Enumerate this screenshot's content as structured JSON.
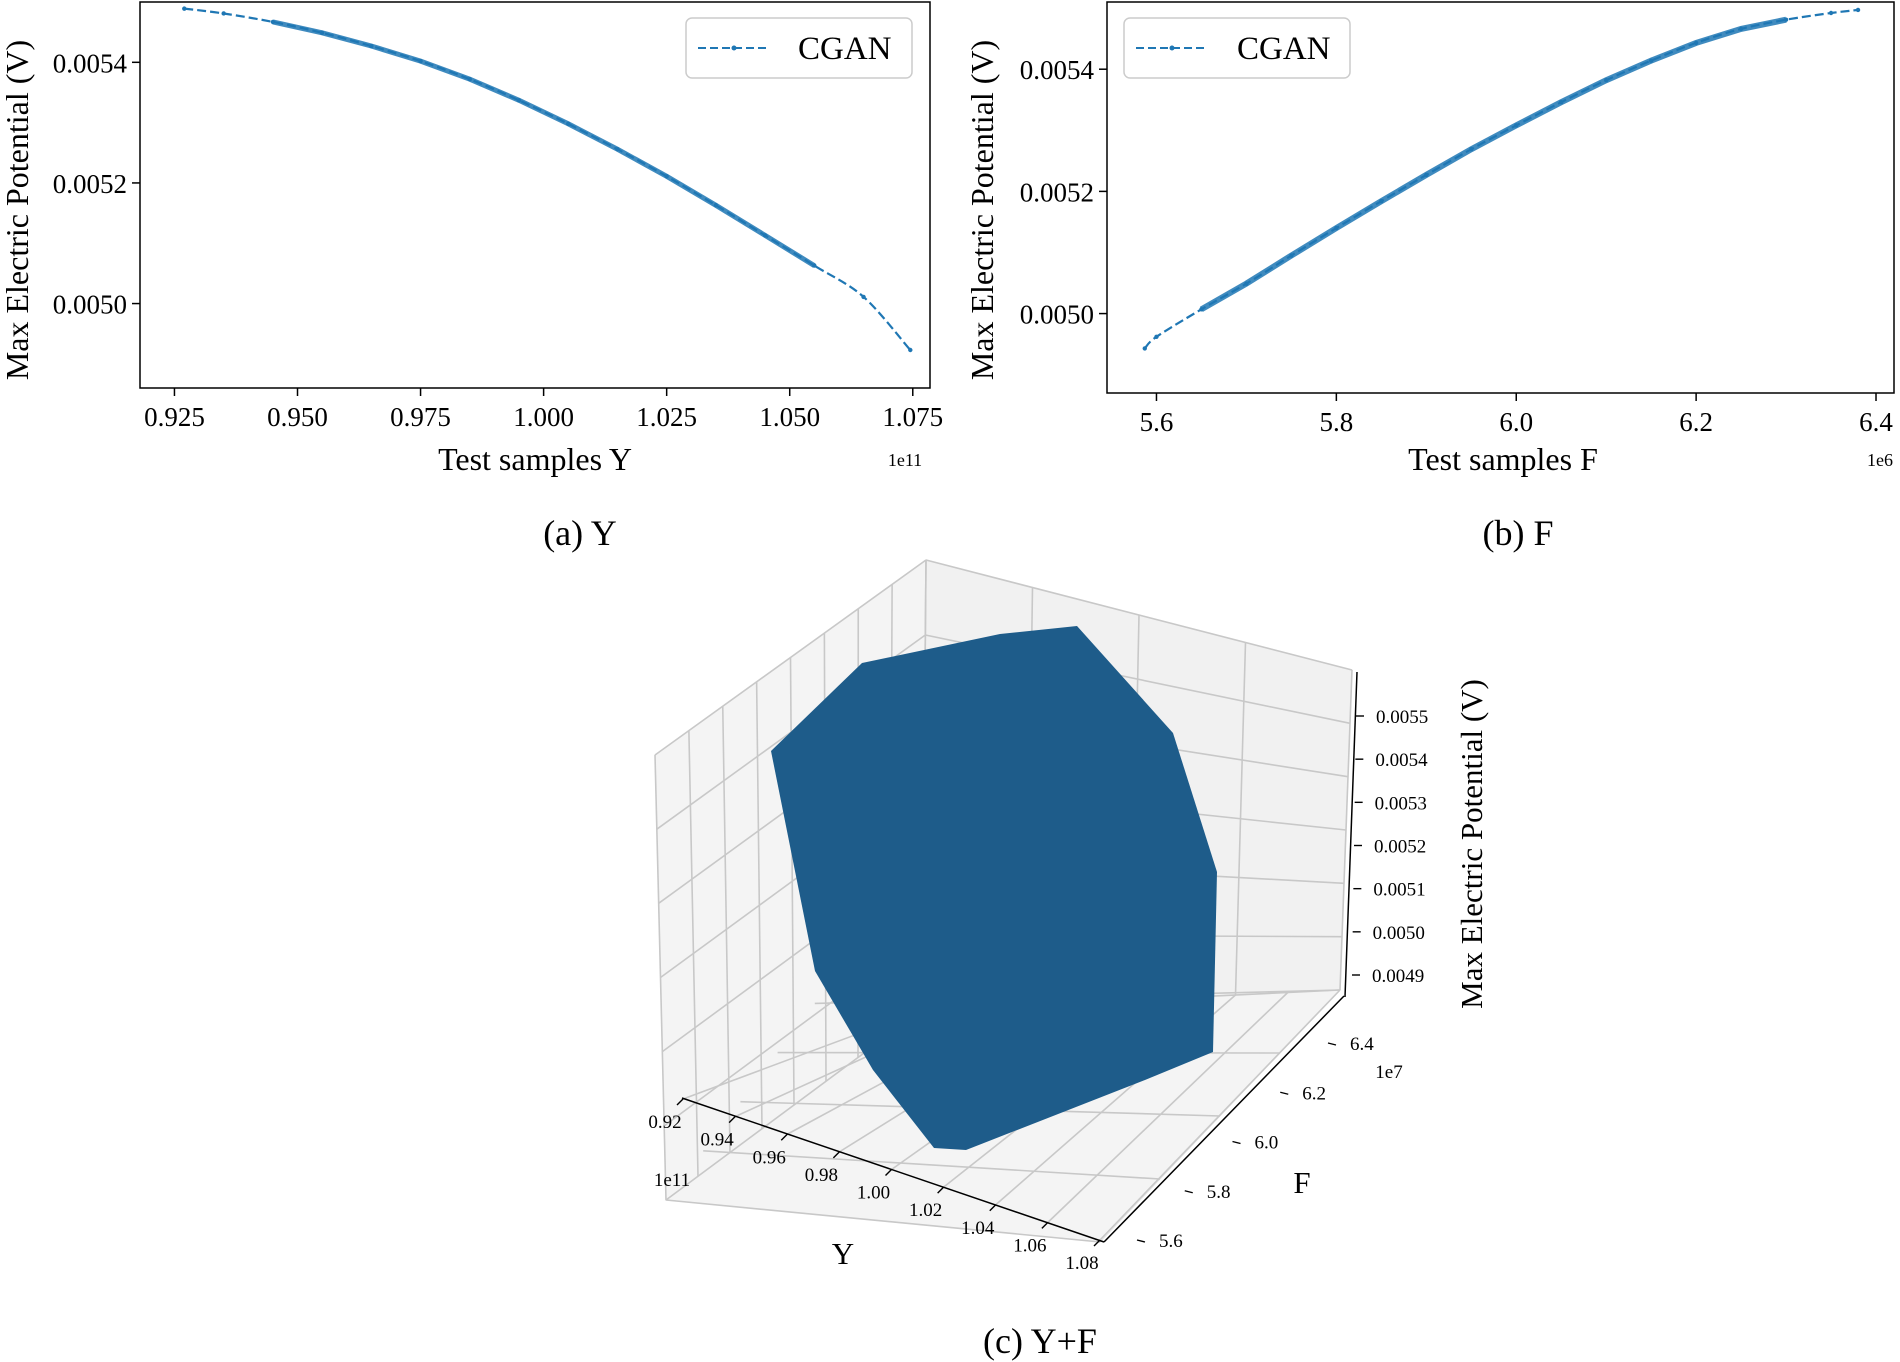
{
  "chart_data": [
    {
      "type": "line",
      "caption": "(a) Y",
      "xlabel": "Test samples Y",
      "ylabel": "Max Electric Potential (V)",
      "x_offset_text": "1e11",
      "xlim": [
        0.918,
        1.0785
      ],
      "ylim": [
        0.00486,
        0.0055
      ],
      "xticks": [
        0.925,
        0.95,
        0.975,
        1.0,
        1.025,
        1.05,
        1.075
      ],
      "xtick_labels": [
        "0.925",
        "0.950",
        "0.975",
        "1.000",
        "1.025",
        "1.050",
        "1.075"
      ],
      "yticks": [
        0.005,
        0.0052,
        0.0054
      ],
      "ytick_labels": [
        "0.0050",
        "0.0052",
        "0.0054"
      ],
      "grid": false,
      "legend_position": "upper right",
      "series": [
        {
          "name": "CGAN",
          "color": "#1f77b4",
          "style": "dashed line with point markers",
          "x": [
            0.927,
            0.935,
            0.945,
            0.955,
            0.965,
            0.975,
            0.985,
            0.995,
            1.005,
            1.015,
            1.025,
            1.035,
            1.045,
            1.055,
            1.065,
            1.0745
          ],
          "y": [
            0.005489,
            0.005481,
            0.005467,
            0.005449,
            0.005427,
            0.005402,
            0.005372,
            0.005337,
            0.005298,
            0.005256,
            0.005211,
            0.005163,
            0.005113,
            0.005063,
            0.005011,
            0.004923
          ]
        }
      ]
    },
    {
      "type": "line",
      "caption": "(b) F",
      "xlabel": "Test samples F",
      "ylabel": "Max Electric Potential (V)",
      "x_offset_text": "1e6",
      "xlim": [
        5.545,
        6.42
      ],
      "ylim": [
        0.00487,
        0.00551
      ],
      "xticks": [
        5.6,
        5.8,
        6.0,
        6.2,
        6.4
      ],
      "xtick_labels": [
        "5.6",
        "5.8",
        "6.0",
        "6.2",
        "6.4"
      ],
      "yticks": [
        0.005,
        0.0052,
        0.0054
      ],
      "ytick_labels": [
        "0.0050",
        "0.0052",
        "0.0054"
      ],
      "grid": false,
      "legend_position": "upper left",
      "series": [
        {
          "name": "CGAN",
          "color": "#1f77b4",
          "style": "dashed line with point markers",
          "x": [
            5.587,
            5.6,
            5.65,
            5.7,
            5.75,
            5.8,
            5.85,
            5.9,
            5.95,
            6.0,
            6.05,
            6.1,
            6.15,
            6.2,
            6.25,
            6.3,
            6.35,
            6.38
          ],
          "y": [
            0.004943,
            0.004962,
            0.005007,
            0.005049,
            0.005095,
            0.00514,
            0.005184,
            0.005227,
            0.005269,
            0.005308,
            0.005346,
            0.005382,
            0.005414,
            0.005443,
            0.005466,
            0.005481,
            0.005492,
            0.005497
          ]
        }
      ]
    },
    {
      "type": "surface3d",
      "caption": "(c) Y+F",
      "xlabel": "Y",
      "ylabel": "F",
      "zlabel": "Max Electric Potential (V)",
      "x_offset_text": "1e11",
      "y_offset_text": "1e7",
      "xtick_labels": [
        "0.92",
        "0.94",
        "0.96",
        "0.98",
        "1.00",
        "1.02",
        "1.04",
        "1.06",
        "1.08"
      ],
      "ytick_labels": [
        "5.6",
        "5.8",
        "6.0",
        "6.2",
        "6.4"
      ],
      "ztick_labels": [
        "0.0049",
        "0.0050",
        "0.0051",
        "0.0052",
        "0.0053",
        "0.0054",
        "0.0055"
      ],
      "surface_color": "#1e5c8a",
      "grid": true
    }
  ],
  "legend": {
    "label": "CGAN"
  }
}
